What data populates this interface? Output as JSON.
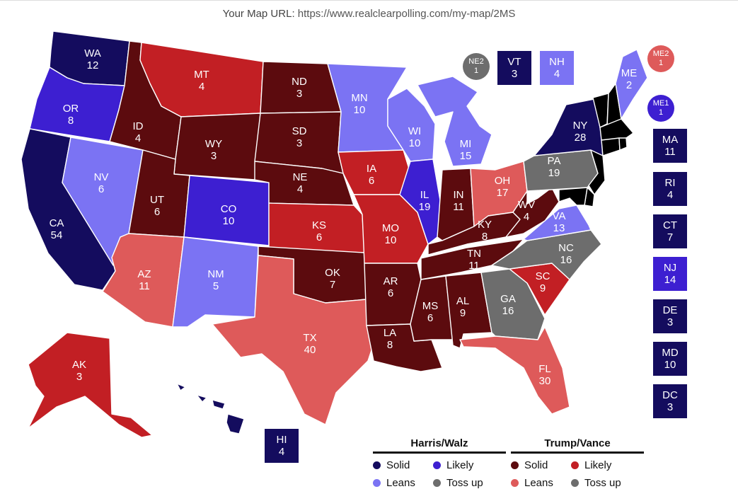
{
  "header": {
    "url_label": "Your Map URL:",
    "url": "https://www.realclearpolling.com/my-map/2MS"
  },
  "colors": {
    "dem_solid": "#140c5e",
    "dem_likely": "#3d1fd1",
    "dem_leans": "#7b73f3",
    "tossup": "#6d6d6d",
    "rep_leans": "#de5a5a",
    "rep_likely": "#c21f24",
    "rep_solid": "#5c0b0e"
  },
  "states": {
    "WA": {
      "abbr": "WA",
      "ev": "12",
      "rating": "dem_solid"
    },
    "OR": {
      "abbr": "OR",
      "ev": "8",
      "rating": "dem_likely"
    },
    "CA": {
      "abbr": "CA",
      "ev": "54",
      "rating": "dem_solid"
    },
    "NV": {
      "abbr": "NV",
      "ev": "6",
      "rating": "dem_leans"
    },
    "ID": {
      "abbr": "ID",
      "ev": "4",
      "rating": "rep_solid"
    },
    "MT": {
      "abbr": "MT",
      "ev": "4",
      "rating": "rep_likely"
    },
    "WY": {
      "abbr": "WY",
      "ev": "3",
      "rating": "rep_solid"
    },
    "UT": {
      "abbr": "UT",
      "ev": "6",
      "rating": "rep_solid"
    },
    "AZ": {
      "abbr": "AZ",
      "ev": "11",
      "rating": "rep_leans"
    },
    "CO": {
      "abbr": "CO",
      "ev": "10",
      "rating": "dem_likely"
    },
    "NM": {
      "abbr": "NM",
      "ev": "5",
      "rating": "dem_leans"
    },
    "ND": {
      "abbr": "ND",
      "ev": "3",
      "rating": "rep_solid"
    },
    "SD": {
      "abbr": "SD",
      "ev": "3",
      "rating": "rep_solid"
    },
    "NE": {
      "abbr": "NE",
      "ev": "4",
      "rating": "rep_solid"
    },
    "KS": {
      "abbr": "KS",
      "ev": "6",
      "rating": "rep_likely"
    },
    "OK": {
      "abbr": "OK",
      "ev": "7",
      "rating": "rep_solid"
    },
    "TX": {
      "abbr": "TX",
      "ev": "40",
      "rating": "rep_leans"
    },
    "MN": {
      "abbr": "MN",
      "ev": "10",
      "rating": "dem_leans"
    },
    "IA": {
      "abbr": "IA",
      "ev": "6",
      "rating": "rep_likely"
    },
    "MO": {
      "abbr": "MO",
      "ev": "10",
      "rating": "rep_likely"
    },
    "AR": {
      "abbr": "AR",
      "ev": "6",
      "rating": "rep_solid"
    },
    "LA": {
      "abbr": "LA",
      "ev": "8",
      "rating": "rep_solid"
    },
    "WI": {
      "abbr": "WI",
      "ev": "10",
      "rating": "dem_leans"
    },
    "IL": {
      "abbr": "IL",
      "ev": "19",
      "rating": "dem_likely"
    },
    "MI": {
      "abbr": "MI",
      "ev": "15",
      "rating": "dem_leans"
    },
    "IN": {
      "abbr": "IN",
      "ev": "11",
      "rating": "rep_solid"
    },
    "OH": {
      "abbr": "OH",
      "ev": "17",
      "rating": "rep_leans"
    },
    "KY": {
      "abbr": "KY",
      "ev": "8",
      "rating": "rep_solid"
    },
    "TN": {
      "abbr": "TN",
      "ev": "11",
      "rating": "rep_solid"
    },
    "MS": {
      "abbr": "MS",
      "ev": "6",
      "rating": "rep_solid"
    },
    "AL": {
      "abbr": "AL",
      "ev": "9",
      "rating": "rep_solid"
    },
    "GA": {
      "abbr": "GA",
      "ev": "16",
      "rating": "tossup"
    },
    "FL": {
      "abbr": "FL",
      "ev": "30",
      "rating": "rep_leans"
    },
    "SC": {
      "abbr": "SC",
      "ev": "9",
      "rating": "rep_likely"
    },
    "NC": {
      "abbr": "NC",
      "ev": "16",
      "rating": "tossup"
    },
    "VA": {
      "abbr": "VA",
      "ev": "13",
      "rating": "dem_leans"
    },
    "WV": {
      "abbr": "WV",
      "ev": "4",
      "rating": "rep_solid"
    },
    "PA": {
      "abbr": "PA",
      "ev": "19",
      "rating": "tossup"
    },
    "NY": {
      "abbr": "NY",
      "ev": "28",
      "rating": "dem_solid"
    },
    "ME": {
      "abbr": "ME",
      "ev": "2",
      "rating": "dem_leans"
    },
    "AK": {
      "abbr": "AK",
      "ev": "3",
      "rating": "rep_likely"
    },
    "HI": {
      "abbr": "HI",
      "ev": "4",
      "rating": "dem_solid"
    }
  },
  "boxes": {
    "VT": {
      "abbr": "VT",
      "ev": "3",
      "rating": "dem_solid"
    },
    "NH": {
      "abbr": "NH",
      "ev": "4",
      "rating": "dem_leans"
    },
    "MA": {
      "abbr": "MA",
      "ev": "11",
      "rating": "dem_solid"
    },
    "RI": {
      "abbr": "RI",
      "ev": "4",
      "rating": "dem_solid"
    },
    "CT": {
      "abbr": "CT",
      "ev": "7",
      "rating": "dem_solid"
    },
    "NJ": {
      "abbr": "NJ",
      "ev": "14",
      "rating": "dem_likely"
    },
    "DE": {
      "abbr": "DE",
      "ev": "3",
      "rating": "dem_solid"
    },
    "MD": {
      "abbr": "MD",
      "ev": "10",
      "rating": "dem_solid"
    },
    "DC": {
      "abbr": "DC",
      "ev": "3",
      "rating": "dem_solid"
    },
    "HI": {
      "abbr": "HI",
      "ev": "4",
      "rating": "dem_solid"
    }
  },
  "circles": {
    "NE2": {
      "abbr": "NE2",
      "ev": "1",
      "rating": "tossup"
    },
    "ME2": {
      "abbr": "ME2",
      "ev": "1",
      "rating": "rep_leans"
    },
    "ME1": {
      "abbr": "ME1",
      "ev": "1",
      "rating": "dem_likely"
    }
  },
  "legend": {
    "harris": {
      "title": "Harris/Walz",
      "solid": "Solid",
      "likely": "Likely",
      "leans": "Leans",
      "tossup": "Toss up"
    },
    "trump": {
      "title": "Trump/Vance",
      "solid": "Solid",
      "likely": "Likely",
      "leans": "Leans",
      "tossup": "Toss up"
    }
  }
}
